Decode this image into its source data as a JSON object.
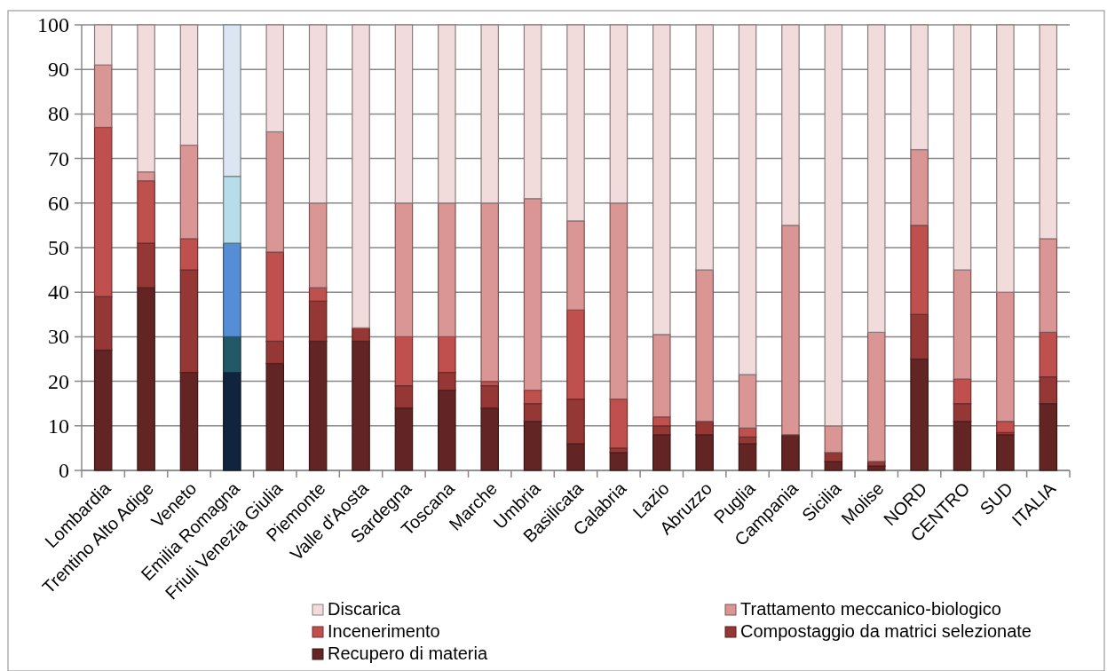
{
  "chart_data": {
    "type": "bar",
    "stacked": true,
    "categories": [
      "Lombardia",
      "Trentino Alto Adige",
      "Veneto",
      "Emilia Romagna",
      "Friuli Venezia Giulia",
      "Piemonte",
      "Valle d'Aosta",
      "Sardegna",
      "Toscana",
      "Marche",
      "Umbria",
      "Basilicata",
      "Calabria",
      "Lazio",
      "Abruzzo",
      "Puglia",
      "Campania",
      "Sicilia",
      "Molise",
      "NORD",
      "CENTRO",
      "SUD",
      "ITALIA"
    ],
    "series": [
      {
        "name": "Recupero di materia",
        "color": "#632523",
        "colors": [
          "#632523",
          "#632523",
          "#632523",
          "#10243e",
          "#632523",
          "#632523",
          "#632523",
          "#632523",
          "#632523",
          "#632523",
          "#632523",
          "#632523",
          "#632523",
          "#632523",
          "#632523",
          "#632523",
          "#632523",
          "#632523",
          "#632523",
          "#632523",
          "#632523",
          "#632523",
          "#632523"
        ],
        "values": [
          27,
          41,
          22,
          22,
          24,
          29,
          29,
          14,
          18,
          14,
          11,
          6,
          4,
          8,
          8,
          6,
          8,
          2,
          1,
          25,
          11,
          8,
          15
        ]
      },
      {
        "name": "Compostaggio da matrici selezionate",
        "color": "#953735",
        "colors": [
          "#953735",
          "#953735",
          "#953735",
          "#215967",
          "#953735",
          "#953735",
          "#953735",
          "#953735",
          "#953735",
          "#953735",
          "#953735",
          "#953735",
          "#953735",
          "#953735",
          "#953735",
          "#953735",
          "#953735",
          "#953735",
          "#953735",
          "#953735",
          "#953735",
          "#953735",
          "#953735"
        ],
        "values": [
          12,
          10,
          23,
          8,
          5,
          9,
          3,
          5,
          4,
          5,
          4,
          10,
          1,
          2,
          3,
          1.5,
          0,
          2,
          1,
          10,
          4,
          0.5,
          6
        ]
      },
      {
        "name": "Incenerimento",
        "color": "#c0504d",
        "colors": [
          "#c0504d",
          "#c0504d",
          "#c0504d",
          "#558ed5",
          "#c0504d",
          "#c0504d",
          "#c0504d",
          "#c0504d",
          "#c0504d",
          "#c0504d",
          "#c0504d",
          "#c0504d",
          "#c0504d",
          "#c0504d",
          "#c0504d",
          "#c0504d",
          "#c0504d",
          "#c0504d",
          "#c0504d",
          "#c0504d",
          "#c0504d",
          "#c0504d",
          "#c0504d"
        ],
        "values": [
          38,
          14,
          7,
          21,
          20,
          3,
          0,
          11,
          8,
          1,
          3,
          20,
          11,
          2,
          0,
          2,
          0,
          0,
          0,
          20,
          5.5,
          2.5,
          10
        ]
      },
      {
        "name": "Trattamento meccanico-biologico",
        "color": "#d99694",
        "colors": [
          "#d99694",
          "#d99694",
          "#d99694",
          "#b7dee8",
          "#d99694",
          "#d99694",
          "#d99694",
          "#d99694",
          "#d99694",
          "#d99694",
          "#d99694",
          "#d99694",
          "#d99694",
          "#d99694",
          "#d99694",
          "#d99694",
          "#d99694",
          "#d99694",
          "#d99694",
          "#d99694",
          "#d99694",
          "#d99694",
          "#d99694"
        ],
        "values": [
          14,
          2,
          21,
          15,
          27,
          19,
          0,
          30,
          30,
          40,
          43,
          20,
          44,
          18.5,
          34,
          12,
          47,
          6,
          29,
          17,
          24.5,
          29,
          21
        ]
      },
      {
        "name": "Discarica",
        "color": "#f2dcdb",
        "colors": [
          "#f2dcdb",
          "#f2dcdb",
          "#f2dcdb",
          "#dce6f2",
          "#f2dcdb",
          "#f2dcdb",
          "#f2dcdb",
          "#f2dcdb",
          "#f2dcdb",
          "#f2dcdb",
          "#f2dcdb",
          "#f2dcdb",
          "#f2dcdb",
          "#f2dcdb",
          "#f2dcdb",
          "#f2dcdb",
          "#f2dcdb",
          "#f2dcdb",
          "#f2dcdb",
          "#f2dcdb",
          "#f2dcdb",
          "#f2dcdb",
          "#f2dcdb"
        ],
        "values": [
          9,
          33,
          27,
          34,
          24,
          40,
          68,
          40,
          40,
          40,
          39,
          44,
          40,
          69.5,
          55,
          78.5,
          45,
          90,
          69,
          28,
          55,
          60,
          48
        ]
      }
    ],
    "ylim": [
      0,
      100
    ],
    "yticks": [
      0,
      10,
      20,
      30,
      40,
      50,
      60,
      70,
      80,
      90,
      100
    ],
    "grid": "y",
    "legend": "bottom"
  }
}
